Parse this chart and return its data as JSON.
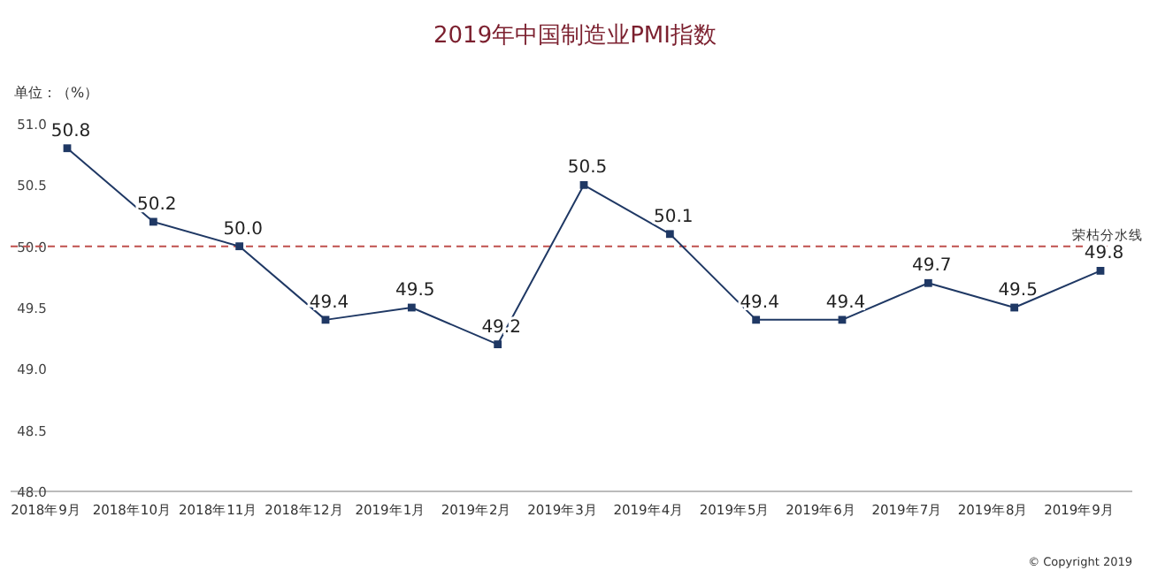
{
  "chart_data": {
    "type": "line",
    "title": "2019年中国制造业PMI指数",
    "ylabel": "单位：（%）",
    "categories": [
      "2018年9月",
      "2018年10月",
      "2018年11月",
      "2018年12月",
      "2019年1月",
      "2019年2月",
      "2019年3月",
      "2019年4月",
      "2019年5月",
      "2019年6月",
      "2019年7月",
      "2019年8月",
      "2019年9月"
    ],
    "values": [
      50.8,
      50.2,
      50.0,
      49.4,
      49.5,
      49.2,
      50.5,
      50.1,
      49.4,
      49.4,
      49.7,
      49.5,
      49.8
    ],
    "value_labels": [
      "50.8",
      "50.2",
      "50.0",
      "49.4",
      "49.5",
      "49.2",
      "50.5",
      "50.1",
      "49.4",
      "49.4",
      "49.7",
      "49.5",
      "49.8"
    ],
    "color": "#1f3864",
    "marker": "square",
    "ylim": [
      48.0,
      51.0
    ],
    "yticks": [
      {
        "value": 48.0,
        "label": "48.0"
      },
      {
        "value": 48.5,
        "label": "48.5"
      },
      {
        "value": 49.0,
        "label": "49.0"
      },
      {
        "value": 49.5,
        "label": "49.5"
      },
      {
        "value": 50.0,
        "label": "50.0"
      },
      {
        "value": 50.5,
        "label": "50.5"
      },
      {
        "value": 51.0,
        "label": "51.0"
      }
    ],
    "ref_lines": [
      {
        "axis": "y",
        "value": 50.0,
        "label": "荣枯分水线",
        "color": "#c0504d",
        "line_style": "dashed"
      }
    ],
    "annotations": [
      "© Copyright 2019"
    ]
  }
}
